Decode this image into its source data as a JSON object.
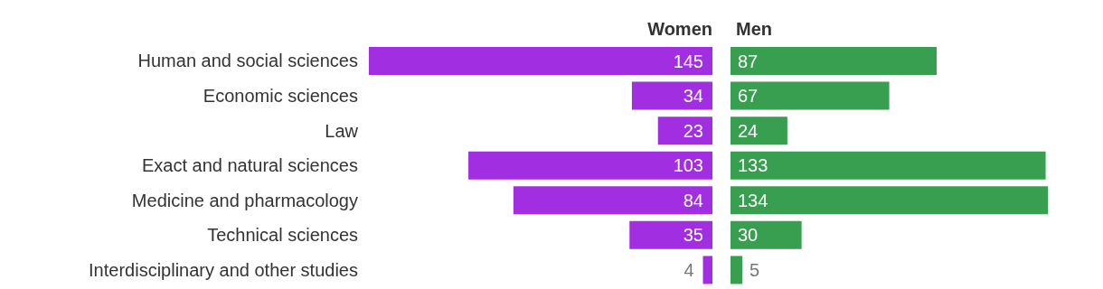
{
  "chart_data": [
    {
      "type": "bar",
      "orientation": "horizontal",
      "title": "Women",
      "categories": [
        "Human and social sciences",
        "Economic sciences",
        "Law",
        "Exact and natural sciences",
        "Medicine and pharmacology",
        "Technical sciences",
        "Interdisciplinary and other studies"
      ],
      "values": [
        145,
        34,
        23,
        103,
        84,
        35,
        4
      ],
      "color": "#a12ee0",
      "data_labels": true
    },
    {
      "type": "bar",
      "orientation": "horizontal",
      "title": "Men",
      "categories": [
        null,
        null,
        null,
        null,
        null,
        null,
        null
      ],
      "values": [
        87,
        67,
        24,
        133,
        134,
        30,
        5
      ],
      "color": "#389e50",
      "data_labels": true,
      "tick_labels": false
    }
  ]
}
